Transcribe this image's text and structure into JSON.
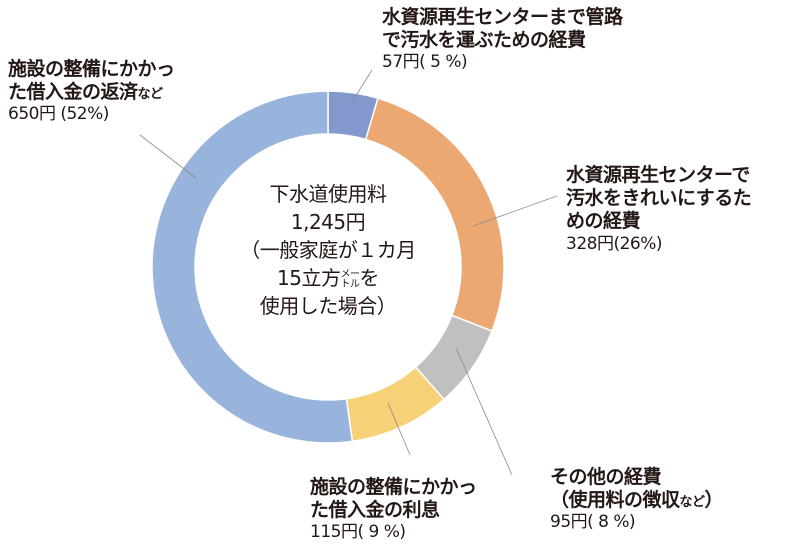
{
  "chart_data": {
    "type": "pie",
    "subtype": "donut",
    "title": "下水道使用料 1,245円（一般家庭が１カ月15立方メートルを使用した場合）",
    "total": 1245,
    "unit": "円",
    "slices": [
      {
        "label": "水資源再生センターまで管路で汚水を運ぶための経費",
        "value": 57,
        "percent": 5,
        "color": "#8398cc"
      },
      {
        "label": "水資源再生センターで汚水をきれいにするための経費",
        "value": 328,
        "percent": 26,
        "color": "#eca872"
      },
      {
        "label": "その他の経費（使用料の徴収など）",
        "value": 95,
        "percent": 8,
        "color": "#c0c0c0"
      },
      {
        "label": "施設の整備にかかった借入金の利息",
        "value": 115,
        "percent": 9,
        "color": "#f6d178"
      },
      {
        "label": "施設の整備にかかった借入金の返済など",
        "value": 650,
        "percent": 52,
        "color": "#98b4dc"
      }
    ],
    "start_angle_deg": 0,
    "direction": "clockwise"
  },
  "center": {
    "line1": "下水道使用料",
    "line2": "1,245円",
    "line3": "（一般家庭が１カ月",
    "line4a": "15立方",
    "line4_unit_top": "メー",
    "line4_unit_bottom": "トル",
    "line4b": "を",
    "line5": "使用した場合）"
  },
  "labels": {
    "pipes": {
      "title": "水資源再生センターまで管路\nで汚水を運ぶための経費",
      "small": "",
      "value": "57円( 5 %)"
    },
    "treatment": {
      "title": "水資源再生センターで\n汚水をきれいにするた\nめの経費",
      "small": "",
      "value": "328円(26%)"
    },
    "other": {
      "title_line1": "その他の経費",
      "title_line2": "（使用料の徴収",
      "small": "など",
      "title_line2_end": "）",
      "value": "95円( 8 %)"
    },
    "interest": {
      "title": "施設の整備にかかっ\nた借入金の利息",
      "small": "",
      "value": "115円( 9 %)"
    },
    "repayment": {
      "title_line1": "施設の整備にかかっ",
      "title_line2": "た借入金の返済",
      "small": "など",
      "value": "650円 (52%)"
    }
  }
}
